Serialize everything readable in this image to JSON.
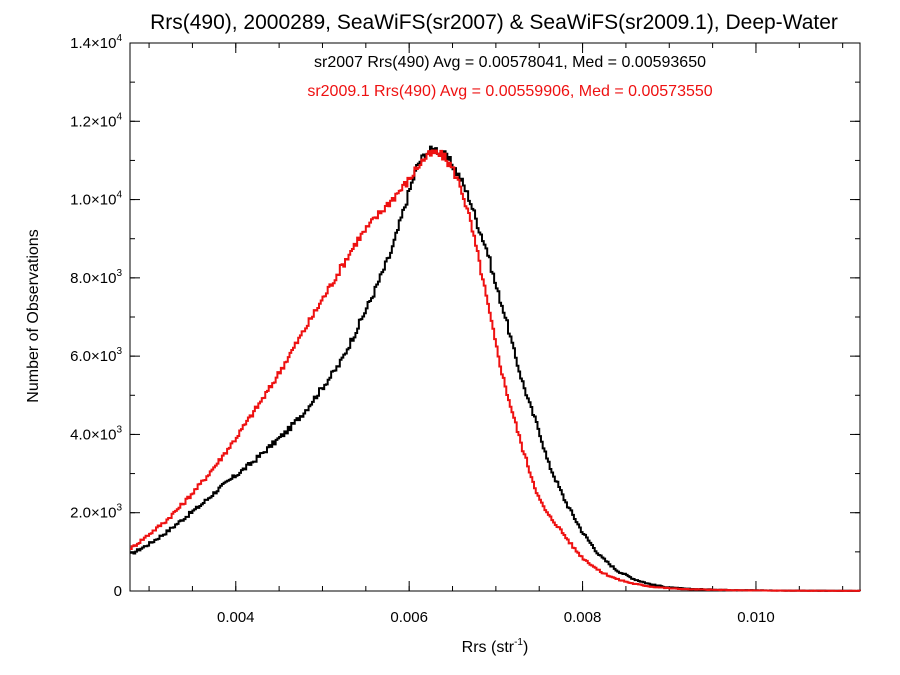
{
  "chart_data": {
    "type": "line",
    "title": "Rrs(490), 2000289, SeaWiFS(sr2007) & SeaWiFS(sr2009.1), Deep-Water",
    "xlabel": {
      "main": "Rrs (str",
      "sup": "-1",
      "close": ")"
    },
    "ylabel": "Number of Observations",
    "xlim": [
      0.00278,
      0.0112
    ],
    "ylim": [
      0,
      14000
    ],
    "xticks": [
      {
        "value": 0.004,
        "label": "0.004"
      },
      {
        "value": 0.006,
        "label": "0.006"
      },
      {
        "value": 0.008,
        "label": "0.008"
      },
      {
        "value": 0.01,
        "label": "0.010"
      }
    ],
    "yticks": [
      {
        "value": 0,
        "mant": "0",
        "exp": ""
      },
      {
        "value": 2000,
        "mant": "2.0×10",
        "exp": "3"
      },
      {
        "value": 4000,
        "mant": "4.0×10",
        "exp": "3"
      },
      {
        "value": 6000,
        "mant": "6.0×10",
        "exp": "3"
      },
      {
        "value": 8000,
        "mant": "8.0×10",
        "exp": "3"
      },
      {
        "value": 10000,
        "mant": "1.0×10",
        "exp": "4"
      },
      {
        "value": 12000,
        "mant": "1.2×10",
        "exp": "4"
      },
      {
        "value": 14000,
        "mant": "1.4×10",
        "exp": "4"
      }
    ],
    "x_minor_step": 0.0005,
    "y_minor_step": 1000,
    "grid": false,
    "series": [
      {
        "name": "sr2007",
        "color": "#000000",
        "annotation": "sr2007 Rrs(490) Avg = 0.00578041, Med = 0.00593650",
        "x": [
          0.0028,
          0.003,
          0.0032,
          0.0034,
          0.0036,
          0.0038,
          0.004,
          0.0042,
          0.0044,
          0.0046,
          0.0048,
          0.005,
          0.0052,
          0.0054,
          0.0056,
          0.0058,
          0.006,
          0.0061,
          0.0062,
          0.0063,
          0.0064,
          0.0065,
          0.0066,
          0.0067,
          0.0068,
          0.0069,
          0.007,
          0.0071,
          0.0072,
          0.0073,
          0.0074,
          0.0075,
          0.0076,
          0.0077,
          0.0078,
          0.0079,
          0.008,
          0.0081,
          0.0082,
          0.0084,
          0.0086,
          0.0088,
          0.009,
          0.0092,
          0.0095,
          0.0098,
          0.0101,
          0.0104,
          0.0107,
          0.011,
          0.0112
        ],
        "y": [
          950,
          1200,
          1500,
          1850,
          2200,
          2600,
          2950,
          3300,
          3700,
          4100,
          4600,
          5200,
          5800,
          6700,
          7650,
          8700,
          10200,
          10900,
          11200,
          11300,
          11150,
          10900,
          10500,
          10000,
          9300,
          8700,
          7800,
          7100,
          6200,
          5400,
          4700,
          4100,
          3300,
          2800,
          2300,
          1900,
          1500,
          1200,
          900,
          520,
          300,
          160,
          90,
          55,
          35,
          22,
          15,
          10,
          7,
          5,
          5
        ]
      },
      {
        "name": "sr2009.1",
        "color": "#ee1111",
        "annotation": "sr2009.1 Rrs(490) Avg = 0.00559906, Med = 0.00573550",
        "x": [
          0.0028,
          0.003,
          0.0032,
          0.0034,
          0.0036,
          0.0038,
          0.004,
          0.0042,
          0.0044,
          0.0046,
          0.0048,
          0.005,
          0.0052,
          0.0054,
          0.0056,
          0.0058,
          0.006,
          0.0061,
          0.0062,
          0.0063,
          0.0064,
          0.0065,
          0.0066,
          0.0067,
          0.0068,
          0.0069,
          0.007,
          0.0071,
          0.0072,
          0.0073,
          0.0074,
          0.0075,
          0.0076,
          0.0077,
          0.0078,
          0.0079,
          0.008,
          0.0081,
          0.0082,
          0.0084,
          0.0086,
          0.0088,
          0.009,
          0.0092,
          0.0095,
          0.0098,
          0.0101,
          0.0104,
          0.0107,
          0.011,
          0.0112
        ],
        "y": [
          1100,
          1450,
          1800,
          2250,
          2750,
          3300,
          3900,
          4550,
          5200,
          5950,
          6700,
          7450,
          8200,
          8950,
          9500,
          10000,
          10500,
          10850,
          11100,
          11200,
          11100,
          10800,
          10300,
          9500,
          8500,
          7400,
          6300,
          5300,
          4500,
          3700,
          3000,
          2350,
          1950,
          1700,
          1400,
          1100,
          850,
          680,
          500,
          300,
          180,
          110,
          70,
          45,
          30,
          18,
          12,
          8,
          6,
          5,
          5
        ]
      }
    ]
  }
}
